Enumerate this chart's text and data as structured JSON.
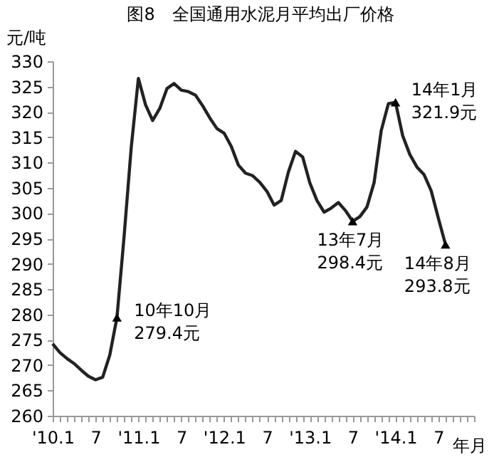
{
  "chart_data": {
    "type": "line",
    "title": "图8　全国通用水泥月平均出厂价格",
    "ylabel": "元/吨",
    "xlabel": "年月",
    "x": [
      "2010-01",
      "2010-02",
      "2010-03",
      "2010-04",
      "2010-05",
      "2010-06",
      "2010-07",
      "2010-08",
      "2010-09",
      "2010-10",
      "2010-11",
      "2010-12",
      "2011-01",
      "2011-02",
      "2011-03",
      "2011-04",
      "2011-05",
      "2011-06",
      "2011-07",
      "2011-08",
      "2011-09",
      "2011-10",
      "2011-11",
      "2011-12",
      "2012-01",
      "2012-02",
      "2012-03",
      "2012-04",
      "2012-05",
      "2012-06",
      "2012-07",
      "2012-08",
      "2012-09",
      "2012-10",
      "2012-11",
      "2012-12",
      "2013-01",
      "2013-02",
      "2013-03",
      "2013-04",
      "2013-05",
      "2013-06",
      "2013-07",
      "2013-08",
      "2013-09",
      "2013-10",
      "2013-11",
      "2013-12",
      "2014-01",
      "2014-02",
      "2014-03",
      "2014-04",
      "2014-05",
      "2014-06",
      "2014-07",
      "2014-08"
    ],
    "series": [
      {
        "color": "#222222",
        "values": [
          274.2,
          272.5,
          271.3,
          270.3,
          269.0,
          267.8,
          267.1,
          267.6,
          272.0,
          279.4,
          295.4,
          313.0,
          326.6,
          321.4,
          318.3,
          320.7,
          324.6,
          325.6,
          324.3,
          324.0,
          323.3,
          321.2,
          318.8,
          316.7,
          315.8,
          313.2,
          309.5,
          307.9,
          307.4,
          306.1,
          304.3,
          301.6,
          302.5,
          308.1,
          312.2,
          311.1,
          306.0,
          302.5,
          300.2,
          301.0,
          302.1,
          300.5,
          298.4,
          299.3,
          301.2,
          306.0,
          316.3,
          321.6,
          321.9,
          315.3,
          311.6,
          309.1,
          307.6,
          304.4,
          299.0,
          293.8
        ]
      }
    ],
    "xlim": [
      "2010-01",
      "2014-12"
    ],
    "xticks": [
      {
        "value": "2010-01",
        "label": "'10.1"
      },
      {
        "value": "2010-02",
        "label": null
      },
      {
        "value": "2010-03",
        "label": null
      },
      {
        "value": "2010-04",
        "label": null
      },
      {
        "value": "2010-05",
        "label": null
      },
      {
        "value": "2010-06",
        "label": null
      },
      {
        "value": "2010-07",
        "label": "7"
      },
      {
        "value": "2010-08",
        "label": null
      },
      {
        "value": "2010-09",
        "label": null
      },
      {
        "value": "2010-10",
        "label": null
      },
      {
        "value": "2010-11",
        "label": null
      },
      {
        "value": "2010-12",
        "label": null
      },
      {
        "value": "2011-01",
        "label": "'11.1"
      },
      {
        "value": "2011-02",
        "label": null
      },
      {
        "value": "2011-03",
        "label": null
      },
      {
        "value": "2011-04",
        "label": null
      },
      {
        "value": "2011-05",
        "label": null
      },
      {
        "value": "2011-06",
        "label": null
      },
      {
        "value": "2011-07",
        "label": "7"
      },
      {
        "value": "2011-08",
        "label": null
      },
      {
        "value": "2011-09",
        "label": null
      },
      {
        "value": "2011-10",
        "label": null
      },
      {
        "value": "2011-11",
        "label": null
      },
      {
        "value": "2011-12",
        "label": null
      },
      {
        "value": "2012-01",
        "label": "'12.1"
      },
      {
        "value": "2012-02",
        "label": null
      },
      {
        "value": "2012-03",
        "label": null
      },
      {
        "value": "2012-04",
        "label": null
      },
      {
        "value": "2012-05",
        "label": null
      },
      {
        "value": "2012-06",
        "label": null
      },
      {
        "value": "2012-07",
        "label": "7"
      },
      {
        "value": "2012-08",
        "label": null
      },
      {
        "value": "2012-09",
        "label": null
      },
      {
        "value": "2012-10",
        "label": null
      },
      {
        "value": "2012-11",
        "label": null
      },
      {
        "value": "2012-12",
        "label": null
      },
      {
        "value": "2013-01",
        "label": "'13.1"
      },
      {
        "value": "2013-02",
        "label": null
      },
      {
        "value": "2013-03",
        "label": null
      },
      {
        "value": "2013-04",
        "label": null
      },
      {
        "value": "2013-05",
        "label": null
      },
      {
        "value": "2013-06",
        "label": null
      },
      {
        "value": "2013-07",
        "label": "7"
      },
      {
        "value": "2013-08",
        "label": null
      },
      {
        "value": "2013-09",
        "label": null
      },
      {
        "value": "2013-10",
        "label": null
      },
      {
        "value": "2013-11",
        "label": null
      },
      {
        "value": "2013-12",
        "label": null
      },
      {
        "value": "2014-01",
        "label": "'14.1"
      },
      {
        "value": "2014-02",
        "label": null
      },
      {
        "value": "2014-03",
        "label": null
      },
      {
        "value": "2014-04",
        "label": null
      },
      {
        "value": "2014-05",
        "label": null
      },
      {
        "value": "2014-06",
        "label": null
      },
      {
        "value": "2014-07",
        "label": "7"
      },
      {
        "value": "2014-08",
        "label": null
      },
      {
        "value": "2014-09",
        "label": null
      },
      {
        "value": "2014-10",
        "label": null
      },
      {
        "value": "2014-11",
        "label": null
      },
      {
        "value": "2014-12",
        "label": null
      }
    ],
    "ylim": [
      260,
      330
    ],
    "yticks": [
      260,
      265,
      270,
      275,
      280,
      285,
      290,
      295,
      300,
      305,
      310,
      315,
      320,
      325,
      330
    ],
    "grid": false,
    "marker": "none",
    "line_style": "solid",
    "annotations": [
      {
        "text": "10年10月\n279.4元",
        "x": "2010-10",
        "y": 279.4
      },
      {
        "text": "13年7月\n298.4元",
        "x": "2013-07",
        "y": 298.4
      },
      {
        "text": "14年1月\n321.9元",
        "x": "2014-01",
        "y": 321.9
      },
      {
        "text": "14年8月\n293.8元",
        "x": "2014-08",
        "y": 293.8
      }
    ]
  }
}
